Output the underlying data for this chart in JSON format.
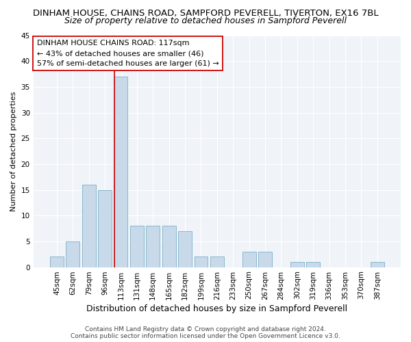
{
  "title": "DINHAM HOUSE, CHAINS ROAD, SAMPFORD PEVERELL, TIVERTON, EX16 7BL",
  "subtitle": "Size of property relative to detached houses in Sampford Peverell",
  "xlabel": "Distribution of detached houses by size in Sampford Peverell",
  "ylabel": "Number of detached properties",
  "categories": [
    "45sqm",
    "62sqm",
    "79sqm",
    "96sqm",
    "113sqm",
    "131sqm",
    "148sqm",
    "165sqm",
    "182sqm",
    "199sqm",
    "216sqm",
    "233sqm",
    "250sqm",
    "267sqm",
    "284sqm",
    "302sqm",
    "319sqm",
    "336sqm",
    "353sqm",
    "370sqm",
    "387sqm"
  ],
  "values": [
    2,
    5,
    16,
    15,
    37,
    8,
    8,
    8,
    7,
    2,
    2,
    0,
    3,
    3,
    0,
    1,
    1,
    0,
    0,
    0,
    1
  ],
  "bar_color": "#c8daea",
  "bar_edge_color": "#7aafc8",
  "highlight_index": 4,
  "highlight_line_color": "#cc0000",
  "annotation_text": "DINHAM HOUSE CHAINS ROAD: 117sqm\n← 43% of detached houses are smaller (46)\n57% of semi-detached houses are larger (61) →",
  "annotation_box_color": "#ffffff",
  "annotation_box_edge": "#cc0000",
  "ylim": [
    0,
    45
  ],
  "yticks": [
    0,
    5,
    10,
    15,
    20,
    25,
    30,
    35,
    40,
    45
  ],
  "background_color": "#ffffff",
  "plot_bg_color": "#f0f4f8",
  "footer": "Contains HM Land Registry data © Crown copyright and database right 2024.\nContains public sector information licensed under the Open Government Licence v3.0.",
  "title_fontsize": 9.5,
  "subtitle_fontsize": 9,
  "xlabel_fontsize": 9,
  "ylabel_fontsize": 8,
  "tick_fontsize": 7.5,
  "annotation_fontsize": 8,
  "footer_fontsize": 6.5
}
